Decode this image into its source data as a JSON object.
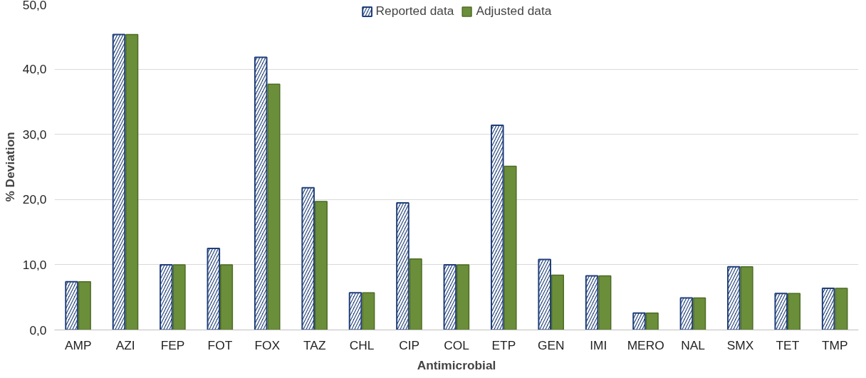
{
  "chart_data": {
    "type": "bar",
    "xlabel": "Antimicrobial",
    "ylabel": "% Deviation",
    "categories": [
      "AMP",
      "AZI",
      "FEP",
      "FOT",
      "FOX",
      "TAZ",
      "CHL",
      "CIP",
      "COL",
      "ETP",
      "GEN",
      "IMI",
      "MERO",
      "NAL",
      "SMX",
      "TET",
      "TMP"
    ],
    "series": [
      {
        "name": "Reported data",
        "color": "#203f7a",
        "values": [
          7.4,
          45.3,
          10.0,
          12.5,
          41.8,
          21.8,
          5.7,
          19.5,
          10.0,
          31.4,
          10.8,
          8.3,
          2.6,
          4.9,
          9.7,
          5.6,
          6.4
        ]
      },
      {
        "name": "Adjusted data",
        "color": "#6b8e3a",
        "values": [
          7.4,
          45.3,
          10.0,
          10.0,
          37.7,
          19.7,
          5.7,
          10.9,
          10.0,
          25.1,
          8.4,
          8.3,
          2.6,
          4.9,
          9.7,
          5.6,
          6.4
        ]
      }
    ],
    "ylim": [
      0,
      50
    ],
    "yticks": [
      {
        "value": 0,
        "label": "0,0"
      },
      {
        "value": 10,
        "label": "10,0"
      },
      {
        "value": 20,
        "label": "20,0"
      },
      {
        "value": 30,
        "label": "30,0"
      },
      {
        "value": 40,
        "label": "40,0"
      },
      {
        "value": 50,
        "label": "50,0"
      }
    ],
    "grid": "y",
    "legend": "top"
  }
}
